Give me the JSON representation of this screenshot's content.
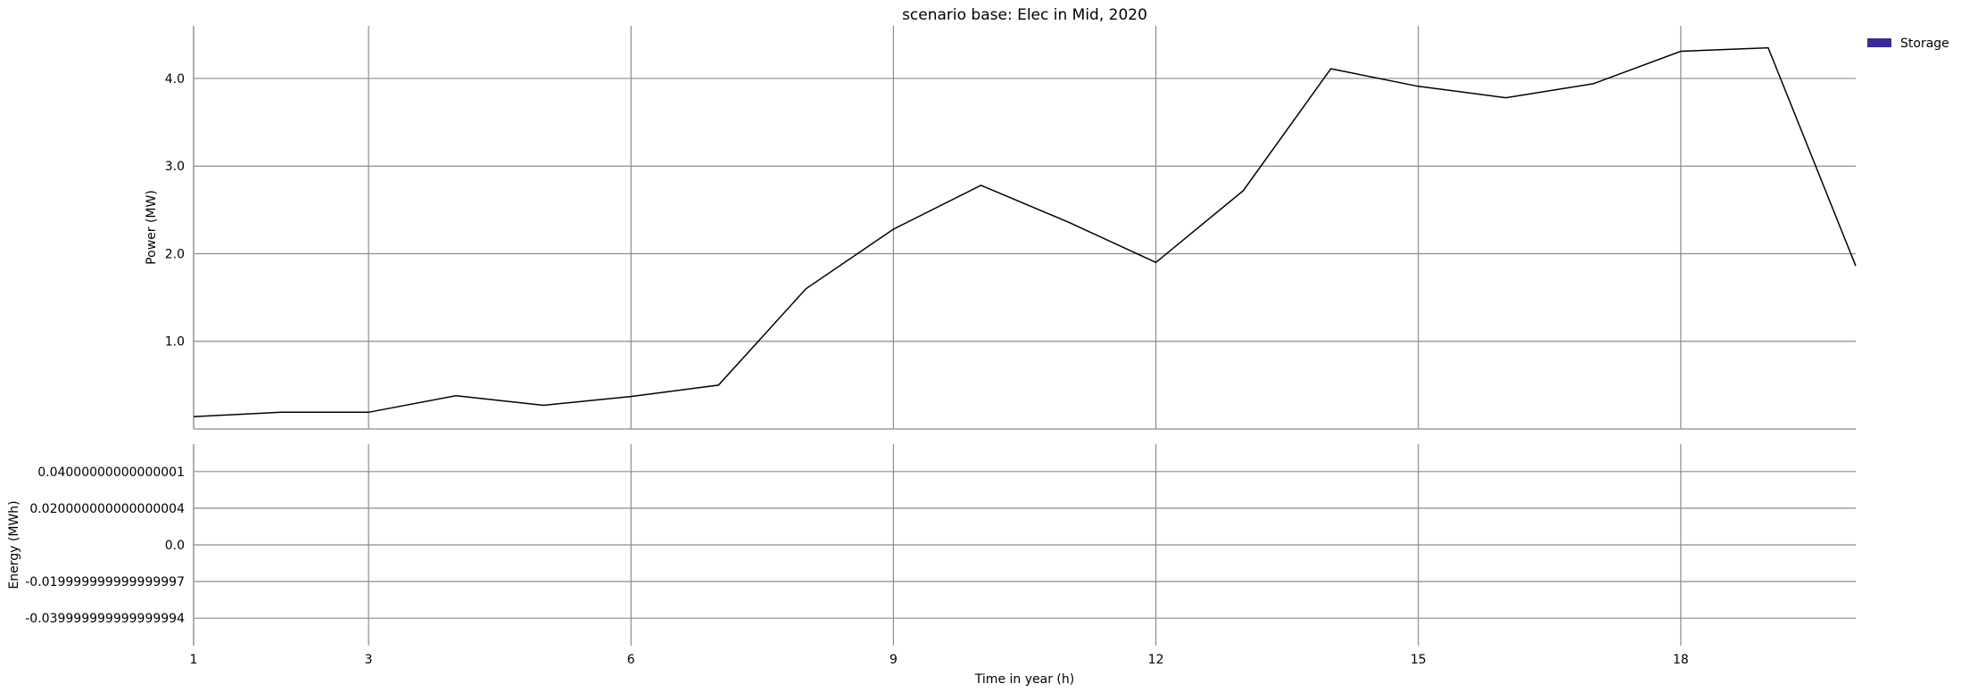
{
  "chart_data": {
    "type": "line",
    "title": "scenario base: Elec in Mid, 2020",
    "xlabel": "Time in year (h)",
    "xlim": [
      1,
      20
    ],
    "xticks": [
      1,
      3,
      6,
      9,
      12,
      15,
      18
    ],
    "xtick_labels": [
      "1",
      "3",
      "6",
      "9",
      "12",
      "15",
      "18"
    ],
    "grid": true,
    "legend": {
      "placement": "top-right",
      "entries": [
        {
          "name": "Storage",
          "color": "#3b2a98"
        }
      ]
    },
    "panels": [
      {
        "ylabel": "Power (MW)",
        "ylim": [
          0,
          4.6
        ],
        "yticks": [
          1.0,
          2.0,
          3.0,
          4.0
        ],
        "ytick_labels": [
          "1.0",
          "2.0",
          "3.0",
          "4.0"
        ],
        "series": [
          {
            "color": "#000000",
            "x": [
              1,
              2,
              3,
              4,
              5,
              6,
              7,
              8,
              9,
              10,
              11,
              12,
              13,
              14,
              15,
              16,
              17,
              18,
              19,
              20
            ],
            "values": [
              0.14,
              0.19,
              0.19,
              0.38,
              0.27,
              0.37,
              0.5,
              1.6,
              2.28,
              2.78,
              2.36,
              1.9,
              2.72,
              4.11,
              3.91,
              3.78,
              3.94,
              4.31,
              4.35,
              1.86
            ]
          }
        ]
      },
      {
        "ylabel": "Energy (MWh)",
        "ylim": [
          -0.055,
          0.055
        ],
        "yticks": [
          0.04000000000000001,
          0.020000000000000004,
          0.0,
          -0.019999999999999997,
          -0.039999999999999994
        ],
        "ytick_labels": [
          "0.04000000000000001",
          "0.020000000000000004",
          "0.0",
          "-0.019999999999999997",
          "-0.039999999999999994"
        ],
        "series": []
      }
    ]
  }
}
